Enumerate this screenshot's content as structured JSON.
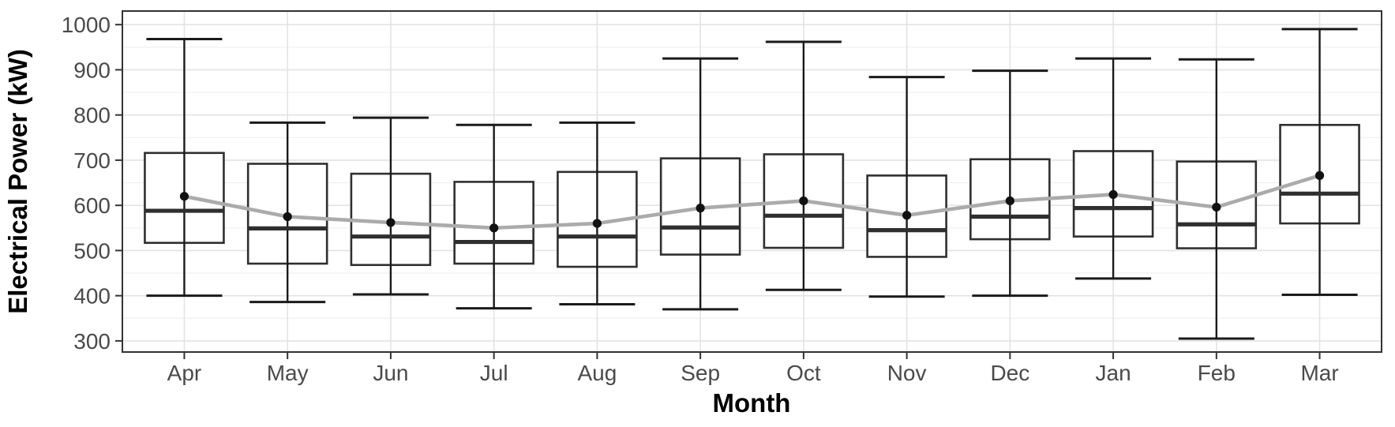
{
  "chart_data": {
    "type": "boxplot",
    "title": "",
    "xlabel": "Month",
    "ylabel": "Electrical Power (kW)",
    "categories": [
      "Apr",
      "May",
      "Jun",
      "Jul",
      "Aug",
      "Sep",
      "Oct",
      "Nov",
      "Dec",
      "Jan",
      "Feb",
      "Mar"
    ],
    "y_ticks": [
      300,
      400,
      500,
      600,
      700,
      800,
      900,
      1000
    ],
    "y_minor_ticks": [
      350,
      450,
      550,
      650,
      750,
      850,
      950
    ],
    "ylim": [
      275,
      1030
    ],
    "grid": {
      "horizontal_major": true,
      "horizontal_minor": true,
      "vertical_major": true,
      "vertical_minor": false
    },
    "legend": "none",
    "series": [
      {
        "name": "monthly_distribution",
        "type": "box",
        "stats": [
          {
            "label": "Apr",
            "whisker_low": 400,
            "q1": 517,
            "median": 588,
            "q3": 716,
            "whisker_high": 968
          },
          {
            "label": "May",
            "whisker_low": 386,
            "q1": 471,
            "median": 549,
            "q3": 692,
            "whisker_high": 783
          },
          {
            "label": "Jun",
            "whisker_low": 403,
            "q1": 468,
            "median": 531,
            "q3": 670,
            "whisker_high": 794
          },
          {
            "label": "Jul",
            "whisker_low": 372,
            "q1": 471,
            "median": 519,
            "q3": 652,
            "whisker_high": 778
          },
          {
            "label": "Aug",
            "whisker_low": 381,
            "q1": 464,
            "median": 531,
            "q3": 674,
            "whisker_high": 783
          },
          {
            "label": "Sep",
            "whisker_low": 370,
            "q1": 491,
            "median": 551,
            "q3": 704,
            "whisker_high": 925
          },
          {
            "label": "Oct",
            "whisker_low": 413,
            "q1": 506,
            "median": 577,
            "q3": 713,
            "whisker_high": 962
          },
          {
            "label": "Nov",
            "whisker_low": 398,
            "q1": 486,
            "median": 545,
            "q3": 666,
            "whisker_high": 884
          },
          {
            "label": "Dec",
            "whisker_low": 400,
            "q1": 525,
            "median": 575,
            "q3": 702,
            "whisker_high": 898
          },
          {
            "label": "Jan",
            "whisker_low": 438,
            "q1": 531,
            "median": 594,
            "q3": 720,
            "whisker_high": 925
          },
          {
            "label": "Feb",
            "whisker_low": 305,
            "q1": 505,
            "median": 558,
            "q3": 697,
            "whisker_high": 923
          },
          {
            "label": "Mar",
            "whisker_low": 402,
            "q1": 560,
            "median": 626,
            "q3": 778,
            "whisker_high": 990
          }
        ]
      },
      {
        "name": "monthly_mean",
        "type": "line_with_points",
        "values": [
          620,
          575,
          562,
          550,
          560,
          594,
          610,
          578,
          610,
          624,
          596,
          666
        ]
      }
    ],
    "style": {
      "background": "#ffffff",
      "panel_border": "#333333",
      "grid_major": "#e3e3e3",
      "grid_minor": "#efefef",
      "box_stroke": "#2f2f2f",
      "box_fill": "#ffffff",
      "median_color": "#2f2f2f",
      "whisker_color": "#1a1a1a",
      "mean_line_color": "#ababab",
      "mean_point_color": "#111111",
      "tick_color": "#333333",
      "tick_label_color": "#4a4a4a",
      "title_color": "#000000"
    }
  }
}
